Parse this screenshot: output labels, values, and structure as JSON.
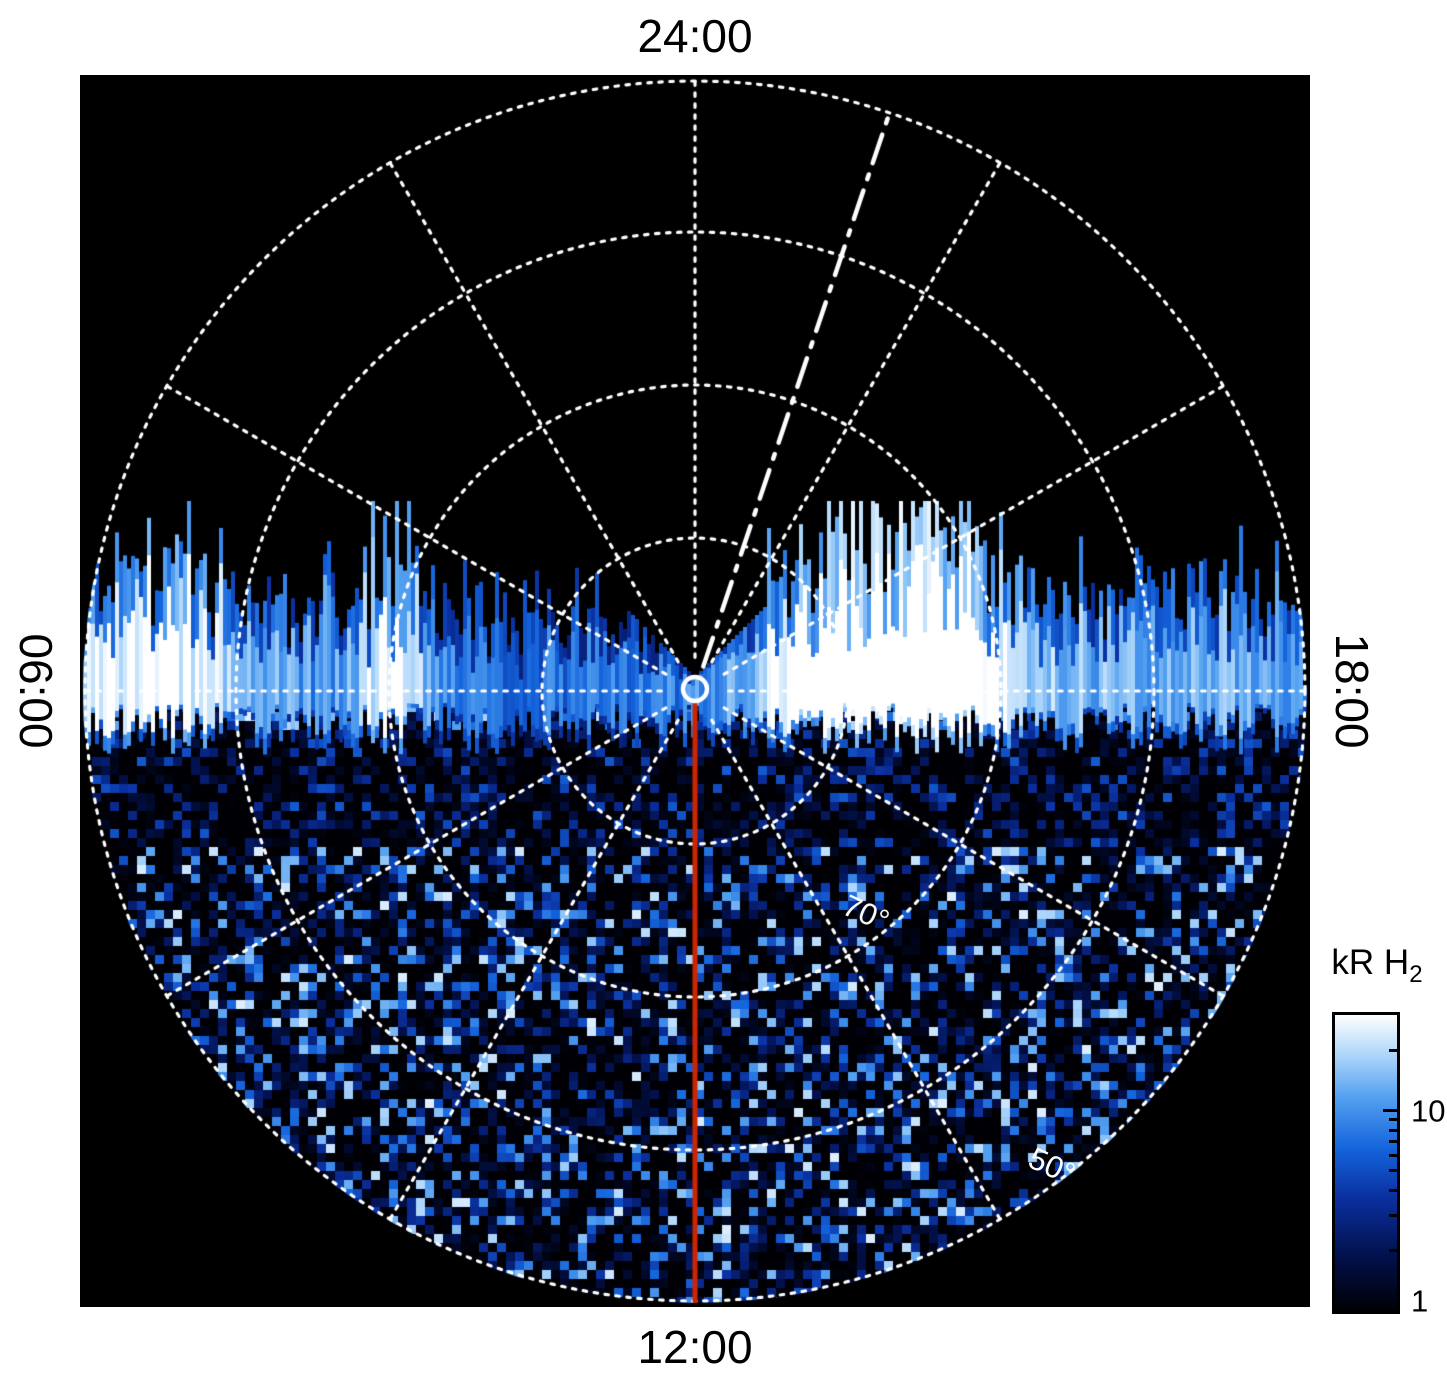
{
  "figure": {
    "description": "Polar map of H2 auroral emission brightness in local time / latitude coordinates"
  },
  "plot": {
    "mlt_labels": {
      "top": "24:00",
      "bottom": "12:00",
      "left": "06:00",
      "right": "18:00"
    },
    "lat_labels": {
      "lat70": "70°",
      "lat50": "50°"
    }
  },
  "colorbar": {
    "label_main": "kR H",
    "label_sub": "2",
    "ticks": [
      {
        "value": 10,
        "label": "10"
      },
      {
        "value": 1,
        "label": "1"
      }
    ]
  },
  "colors": {
    "page_bg": "#ffffff",
    "plot_bg": "#000000",
    "grid": "#ffffff",
    "text": "#000000",
    "noon_meridian_line": "#cc2600",
    "colormap": [
      {
        "t": 0.0,
        "hex": "#000004"
      },
      {
        "t": 0.18,
        "hex": "#02104a"
      },
      {
        "t": 0.38,
        "hex": "#0a2f9e"
      },
      {
        "t": 0.55,
        "hex": "#1464dc"
      },
      {
        "t": 0.72,
        "hex": "#53a0f0"
      },
      {
        "t": 0.86,
        "hex": "#aad4fa"
      },
      {
        "t": 1.0,
        "hex": "#ffffff"
      }
    ]
  },
  "chart_data": {
    "type": "heatmap",
    "projection": "polar",
    "quantity": "H2 auroral emission brightness",
    "units": "kR",
    "color_scale": {
      "type": "log",
      "min": 1,
      "max": 30,
      "tick_values": [
        1,
        10
      ],
      "tick_labels": [
        "1",
        "10"
      ],
      "label": "kR H2",
      "colormap": "black-blue-white"
    },
    "angular_axis": {
      "name": "local time",
      "direction_labels": [
        {
          "label": "24:00",
          "position": "top"
        },
        {
          "label": "18:00",
          "position": "right"
        },
        {
          "label": "12:00",
          "position": "bottom"
        },
        {
          "label": "06:00",
          "position": "left"
        }
      ],
      "spoke_interval_hours": 2
    },
    "radial_axis": {
      "name": "latitude",
      "center": "pole 90°",
      "ring_latitudes_deg": [
        80,
        70,
        60,
        50
      ],
      "outer_edge_latitude_deg": 50,
      "labeled_rings": [
        "70°",
        "50°"
      ]
    },
    "grid_style": "white dotted rings and spokes",
    "features": [
      {
        "name": "auroral-emission-band",
        "description": "ragged band of blue/white vertical streaks spanning the dawn-dusk (06:00-18:00) line through the pole; brightest white patch in the pre-dusk sector right of center"
      },
      {
        "name": "noise-speckle-region",
        "description": "mottled dark-blue statistical noise filling the dayside (lower) half of the disk toward 12:00"
      },
      {
        "name": "no-data-region",
        "description": "empty black nightside (upper) sector above the emission band"
      },
      {
        "name": "noon-meridian-line",
        "description": "solid red-orange radial line from the pole to the 12:00 edge",
        "color": "#cc2600"
      },
      {
        "name": "dash-dot-meridian-line",
        "description": "white dash-dot radial line from the pole toward ~22:40 local time (upper right)",
        "color": "#ffffff"
      },
      {
        "name": "pole-marker",
        "description": "small white circle outline at the pole"
      }
    ]
  }
}
